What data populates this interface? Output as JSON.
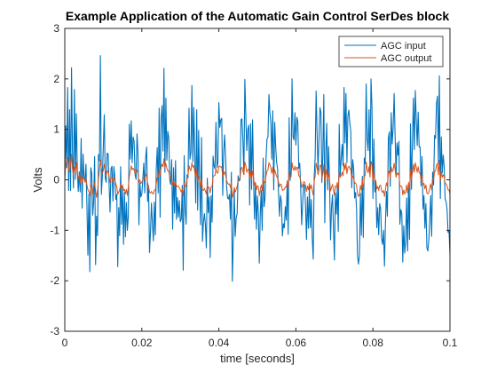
{
  "chart_data": {
    "type": "line",
    "title": "Example Application of the Automatic Gain Control SerDes block",
    "xlabel": "time [seconds]",
    "ylabel": "Volts",
    "xlim": [
      0,
      0.1
    ],
    "ylim": [
      -3,
      3
    ],
    "xticks": [
      0,
      0.02,
      0.04,
      0.06,
      0.08,
      0.1
    ],
    "xtick_labels": [
      "0",
      "0.02",
      "0.04",
      "0.06",
      "0.08",
      "0.1"
    ],
    "yticks": [
      -3,
      -2,
      -1,
      0,
      1,
      2,
      3
    ],
    "ytick_labels": [
      "-3",
      "-2",
      "-1",
      "0",
      "1",
      "2",
      "3"
    ],
    "grid": false,
    "legend_position": "top-right",
    "sample_step": 0.00025,
    "series": [
      {
        "name": "AGC input",
        "color": "#0072BD",
        "values": [
          0.0,
          1.07,
          0.24,
          1.83,
          -0.21,
          1.39,
          -0.21,
          2.22,
          0.55,
          -0.16,
          1.79,
          0.01,
          1.31,
          0.21,
          -0.23,
          0.16,
          -0.24,
          0.82,
          -0.56,
          0.51,
          0.02,
          -0.02,
          0.31,
          -0.52,
          -1.49,
          -0.29,
          -1.82,
          0.24,
          0.13,
          -0.7,
          -0.43,
          0.46,
          -1.68,
          -0.72,
          -1.11,
          0.5,
          0.38,
          2.46,
          -0.29,
          0.07,
          0.65,
          1.29,
          0.04,
          -0.05,
          0.53,
          0.51,
          -0.08,
          -0.64,
          0.22,
          0.27,
          -0.42,
          0.26,
          0.05,
          -0.39,
          -0.29,
          -1.72,
          -0.55,
          -1.11,
          0.26,
          -0.88,
          -0.14,
          -1.28,
          -0.25,
          -1.13,
          -0.45,
          -1.0,
          -0.72,
          1.1,
          0.41,
          1.17,
          0.34,
          0.85,
          0.76,
          0.1,
          0.01,
          0.91,
          0.54,
          -0.89,
          -0.06,
          -0.34,
          -0.28,
          0.0,
          0.33,
          -0.26,
          0.44,
          0.65,
          -0.43,
          -0.12,
          -1.44,
          -1.03,
          -0.46,
          -0.87,
          -1.21,
          -0.44,
          -1.09,
          0.2,
          0.64,
          -0.26,
          1.42,
          -0.74,
          1.21,
          1.47,
          0.57,
          2.21,
          0.15,
          1.62,
          0.39,
          0.96,
          0.83,
          -0.0,
          -0.09,
          0.4,
          -0.98,
          0.24,
          -0.66,
          0.38,
          -0.78,
          -0.35,
          -0.74,
          -0.41,
          -0.83,
          -0.78,
          -0.11,
          -1.79,
          0.48,
          -0.59,
          -0.88,
          0.1,
          0.04,
          1.42,
          0.41,
          0.54,
          1.87,
          0.36,
          1.43,
          0.48,
          -0.46,
          1.39,
          -0.6,
          0.98,
          -0.04,
          -0.89,
          0.84,
          -1.22,
          -0.84,
          -0.67,
          -0.88,
          -1.35,
          0.03,
          -0.65,
          -0.34,
          -1.54,
          -0.31,
          -0.84,
          0.47,
          0.27,
          0.22,
          1.14,
          0.24,
          0.34,
          1.53,
          1.04,
          1.19,
          1.22,
          -0.31,
          0.55,
          0.89,
          0.44,
          -0.1,
          -0.36,
          -0.38,
          -0.29,
          -0.78,
          0.15,
          -2.01,
          -1.15,
          -0.22,
          -1.12,
          -0.75,
          -0.67,
          0.08,
          -0.02,
          -0.0,
          1.19,
          1.21,
          0.76,
          0.11,
          1.99,
          1.28,
          0.58,
          0.99,
          1.08,
          -0.5,
          1.11,
          -0.19,
          1.19,
          0.03,
          -0.78,
          -0.06,
          -0.98,
          -0.32,
          -0.64,
          -1.65,
          -0.69,
          -0.21,
          -1.0,
          0.43,
          -0.53,
          -0.35,
          0.43,
          0.81,
          0.85,
          1.69,
          1.33,
          1.12,
          0.41,
          1.37,
          -0.2,
          1.14,
          0.66,
          0.35,
          0.21,
          -0.27,
          -0.72,
          -0.31,
          -0.44,
          -1.11,
          -0.87,
          -0.95,
          -0.53,
          -0.8,
          -0.02,
          -1.08,
          1.23,
          -0.01,
          0.16,
          2.0,
          0.85,
          0.79,
          1.33,
          0.69,
          1.24,
          1.15,
          0.23,
          0.33,
          -0.16,
          -0.89,
          -0.48,
          -0.09,
          -0.11,
          -0.51,
          -1.18,
          -0.34,
          -0.96,
          -0.15,
          -0.95,
          -0.39,
          -1.15,
          -1.57,
          0.06,
          0.44,
          1.76,
          0.92,
          0.19,
          0.83,
          1.43,
          1.34,
          -0.05,
          0.51,
          1.69,
          -0.85,
          0.55,
          1.12,
          -0.2,
          0.66,
          -0.11,
          -1.19,
          -0.54,
          -0.3,
          -0.95,
          -1.59,
          -0.26,
          -0.68,
          -0.14,
          -1.02,
          1.1,
          0.08,
          0.4,
          0.7,
          0.28,
          1.83,
          0.73,
          1.71,
          0.34,
          1.27,
          1.38,
          1.12,
          0.96,
          -0.16,
          0.4,
          0.22,
          -0.36,
          -0.25,
          -0.57,
          -1.51,
          -1.67,
          -1.49,
          -0.27,
          -1.1,
          0.07,
          -1.14,
          0.43,
          0.32,
          1.9,
          0.81,
          0.58,
          1.39,
          0.06,
          2.0,
          1.44,
          -0.37,
          0.81,
          -0.24,
          -0.03,
          -0.95,
          -0.55,
          -1.09,
          -0.47,
          -0.57,
          -1.16,
          -1.28,
          -1.0,
          -1.71,
          -0.87,
          -0.23,
          -0.72,
          0.82,
          0.95,
          -0.13,
          1.33,
          0.71,
          1.04,
          1.71,
          0.89,
          0.11,
          0.73,
          0.49,
          0.76,
          -0.88,
          -0.59,
          -0.67,
          -1.63,
          -0.91,
          -1.45,
          -1.21,
          -0.36,
          -1.41,
          -0.13,
          -1.18,
          1.11,
          -0.19,
          0.72,
          1.62,
          0.6,
          1.77,
          1.21,
          0.68,
          1.34,
          0.65,
          0.65,
          -0.12,
          0.46,
          -0.58,
          -0.31,
          -0.96,
          -0.47,
          -1.34,
          -1.41,
          -1.2,
          -0.82,
          -0.31,
          -1.12,
          0.15,
          -0.1,
          0.88,
          0.82,
          1.51,
          1.66,
          0.32,
          2.06,
          -0.37,
          0.85,
          0.14,
          0.49,
          0.27,
          -0.39,
          -0.43,
          -0.59,
          -1.04,
          -1.01,
          -1.48,
          -1.7,
          -1.08,
          -0.46,
          -1.5,
          0.47,
          -0.1,
          1.66,
          -0.24
        ]
      },
      {
        "name": "AGC output",
        "color": "#D95319",
        "values": [
          0.0,
          0.29,
          0.41,
          0.44,
          0.21,
          0.16,
          0.32,
          0.51,
          0.22,
          0.09,
          0.25,
          0.18,
          0.34,
          0.12,
          0.03,
          0.11,
          -0.06,
          0.12,
          -0.04,
          0.05,
          0.05,
          -0.05,
          0.02,
          -0.1,
          -0.2,
          -0.23,
          -0.31,
          -0.09,
          -0.16,
          -0.28,
          -0.11,
          -0.06,
          -0.22,
          -0.35,
          -0.22,
          0.03,
          0.19,
          0.39,
          0.22,
          0.14,
          0.18,
          0.31,
          0.19,
          0.1,
          0.16,
          0.18,
          0.06,
          -0.05,
          0.05,
          0.04,
          -0.04,
          0.06,
          -0.02,
          -0.08,
          -0.13,
          -0.29,
          -0.24,
          -0.2,
          -0.09,
          -0.16,
          -0.1,
          -0.21,
          -0.19,
          -0.28,
          -0.19,
          -0.31,
          -0.14,
          0.07,
          0.18,
          0.28,
          0.2,
          0.23,
          0.2,
          0.12,
          0.15,
          0.19,
          0.13,
          -0.05,
          0.0,
          -0.07,
          -0.05,
          -0.01,
          0.04,
          0.01,
          0.12,
          0.08,
          -0.06,
          -0.13,
          -0.25,
          -0.26,
          -0.23,
          -0.27,
          -0.28,
          -0.21,
          -0.2,
          -0.08,
          0.04,
          0.05,
          0.19,
          0.1,
          0.25,
          0.31,
          0.26,
          0.42,
          0.25,
          0.32,
          0.23,
          0.18,
          0.17,
          0.05,
          0.02,
          0.04,
          -0.1,
          -0.03,
          -0.12,
          -0.03,
          -0.14,
          -0.12,
          -0.13,
          -0.16,
          -0.2,
          -0.24,
          -0.18,
          -0.32,
          -0.06,
          -0.12,
          -0.13,
          0.02,
          0.1,
          0.28,
          0.21,
          0.18,
          0.34,
          0.25,
          0.28,
          0.16,
          0.04,
          0.2,
          -0.05,
          0.07,
          -0.01,
          -0.14,
          0.02,
          -0.2,
          -0.21,
          -0.17,
          -0.22,
          -0.28,
          -0.1,
          -0.16,
          -0.15,
          -0.26,
          -0.14,
          -0.13,
          0.06,
          0.08,
          0.09,
          0.22,
          0.14,
          0.13,
          0.27,
          0.27,
          0.25,
          0.26,
          0.06,
          0.11,
          0.16,
          0.09,
          -0.01,
          -0.06,
          -0.09,
          -0.08,
          -0.15,
          -0.06,
          -0.35,
          -0.29,
          -0.15,
          -0.24,
          -0.19,
          -0.13,
          0.01,
          0.02,
          0.03,
          0.22,
          0.25,
          0.17,
          0.1,
          0.35,
          0.29,
          0.15,
          0.2,
          0.21,
          0.01,
          0.17,
          0.0,
          0.17,
          0.05,
          -0.11,
          -0.05,
          -0.2,
          -0.11,
          -0.14,
          -0.31,
          -0.2,
          -0.1,
          -0.21,
          0.03,
          -0.06,
          -0.04,
          0.08,
          0.17,
          0.2,
          0.34,
          0.3,
          0.24,
          0.13,
          0.25,
          0.04,
          0.2,
          0.13,
          0.07,
          0.04,
          -0.05,
          -0.14,
          -0.08,
          -0.1,
          -0.21,
          -0.2,
          -0.19,
          -0.14,
          -0.14,
          -0.04,
          -0.16,
          0.15,
          0.04,
          0.06,
          0.34,
          0.22,
          0.19,
          0.27,
          0.19,
          0.25,
          0.24,
          0.08,
          0.07,
          -0.02,
          -0.15,
          -0.11,
          -0.04,
          -0.04,
          -0.11,
          -0.23,
          -0.12,
          -0.2,
          -0.07,
          -0.18,
          -0.1,
          -0.21,
          -0.3,
          -0.03,
          0.07,
          0.33,
          0.24,
          0.1,
          0.18,
          0.29,
          0.28,
          0.05,
          0.11,
          0.31,
          -0.07,
          0.09,
          0.2,
          0.01,
          0.12,
          -0.01,
          -0.22,
          -0.15,
          -0.09,
          -0.19,
          -0.31,
          -0.12,
          -0.14,
          -0.05,
          -0.2,
          0.16,
          0.05,
          0.08,
          0.15,
          0.08,
          0.33,
          0.2,
          0.33,
          0.12,
          0.24,
          0.27,
          0.23,
          0.2,
          0.01,
          0.07,
          0.04,
          -0.07,
          -0.06,
          -0.11,
          -0.28,
          -0.33,
          -0.3,
          -0.11,
          -0.2,
          0.0,
          -0.2,
          0.08,
          0.08,
          0.35,
          0.21,
          0.14,
          0.26,
          0.06,
          0.37,
          0.3,
          -0.02,
          0.14,
          -0.04,
          -0.01,
          -0.18,
          -0.13,
          -0.21,
          -0.11,
          -0.11,
          -0.22,
          -0.25,
          -0.21,
          -0.33,
          -0.19,
          -0.06,
          -0.13,
          0.14,
          0.18,
          0.03,
          0.25,
          0.16,
          0.2,
          0.33,
          0.2,
          0.05,
          0.14,
          0.1,
          0.14,
          -0.14,
          -0.12,
          -0.13,
          -0.3,
          -0.2,
          -0.28,
          -0.25,
          -0.1,
          -0.26,
          -0.05,
          -0.22,
          0.19,
          0.0,
          0.14,
          0.31,
          0.15,
          0.34,
          0.25,
          0.15,
          0.26,
          0.14,
          0.13,
          -0.01,
          0.08,
          -0.1,
          -0.07,
          -0.18,
          -0.1,
          -0.26,
          -0.28,
          -0.25,
          -0.17,
          -0.08,
          -0.2,
          0.02,
          0.0,
          0.17,
          0.17,
          0.29,
          0.32,
          0.1,
          0.39,
          -0.03,
          0.17,
          0.05,
          0.1,
          0.06,
          -0.07,
          -0.08,
          -0.12,
          -0.2,
          -0.2,
          -0.28,
          -0.33,
          -0.23,
          -0.11,
          -0.28,
          0.07,
          0.0,
          0.31,
          0.0
        ]
      }
    ]
  }
}
